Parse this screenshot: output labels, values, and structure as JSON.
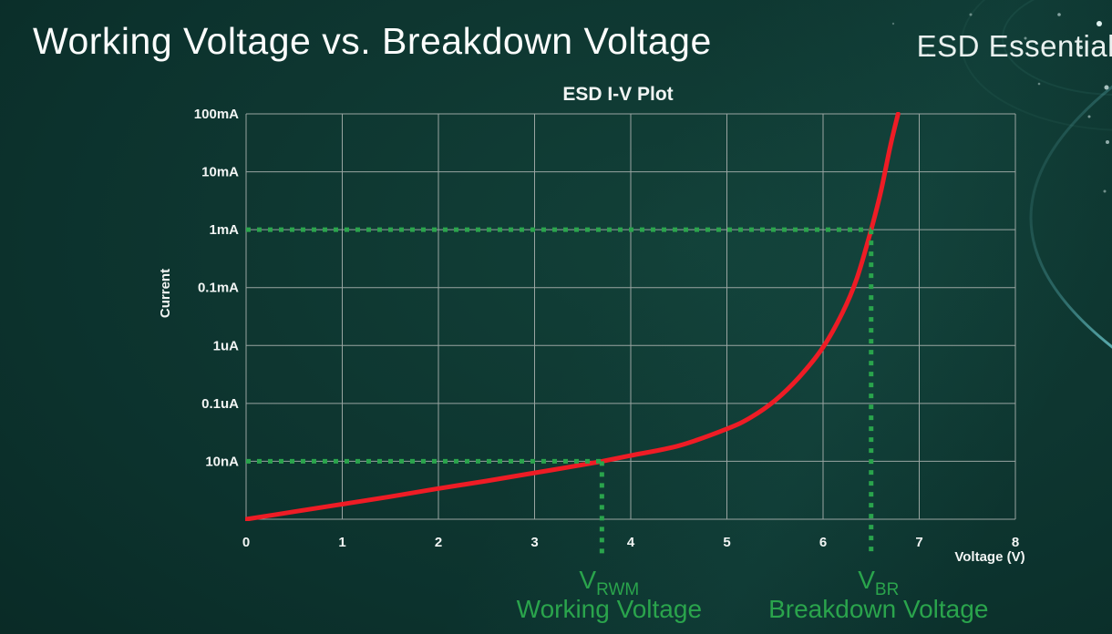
{
  "slide": {
    "title": "Working Voltage vs. Breakdown Voltage",
    "brand": "ESD Essentials"
  },
  "chart_data": {
    "type": "line",
    "title": "ESD I-V Plot",
    "xlabel": "Voltage (V)",
    "ylabel": "Current",
    "xlim": [
      0,
      8
    ],
    "x_ticks": [
      "0",
      "1",
      "2",
      "3",
      "4",
      "5",
      "6",
      "7",
      "8"
    ],
    "y_scale": "log",
    "y_levels": 7,
    "y_ticks": [
      "100mA",
      "10mA",
      "1mA",
      "0.1mA",
      "1uA",
      "0.1uA",
      "10nA"
    ],
    "grid": true,
    "colors": {
      "grid": "#a9b1ae",
      "text": "#f2f5f4"
    },
    "series": [
      {
        "name": "ESD I-V curve",
        "color": "#ee1c25",
        "points": [
          [
            0,
            0
          ],
          [
            0.5,
            0.13
          ],
          [
            1,
            0.26
          ],
          [
            1.5,
            0.39
          ],
          [
            2,
            0.53
          ],
          [
            2.5,
            0.66
          ],
          [
            3,
            0.8
          ],
          [
            3.5,
            0.94
          ],
          [
            3.7,
            1.0
          ],
          [
            4,
            1.1
          ],
          [
            4.5,
            1.27
          ],
          [
            5,
            1.56
          ],
          [
            5.25,
            1.76
          ],
          [
            5.5,
            2.05
          ],
          [
            5.75,
            2.45
          ],
          [
            6,
            2.97
          ],
          [
            6.2,
            3.56
          ],
          [
            6.35,
            4.15
          ],
          [
            6.5,
            5.0
          ],
          [
            6.6,
            5.65
          ],
          [
            6.7,
            6.45
          ],
          [
            6.78,
            7.0
          ]
        ]
      }
    ],
    "annotations": {
      "color": "#2aa44c",
      "working": {
        "symbol": "V",
        "subscript": "RWM",
        "label": "Working Voltage",
        "voltage": 3.7,
        "current_level": 1,
        "current_label": "10nA"
      },
      "breakdown": {
        "symbol": "V",
        "subscript": "BR",
        "label": "Breakdown Voltage",
        "voltage": 6.5,
        "current_level": 5,
        "current_label": "1mA"
      }
    }
  }
}
